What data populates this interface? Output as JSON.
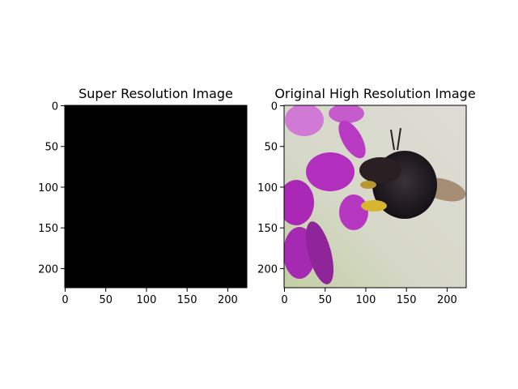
{
  "chart_data": [
    {
      "type": "image",
      "title": "Super Resolution Image",
      "xlim": [
        -0.5,
        223.5
      ],
      "ylim": [
        223.5,
        -0.5
      ],
      "xticks": [
        0,
        50,
        100,
        150,
        200
      ],
      "yticks": [
        0,
        50,
        100,
        150,
        200
      ]
    },
    {
      "type": "image",
      "title": "Original High Resolution Image",
      "xlim": [
        -0.5,
        223.5
      ],
      "ylim": [
        223.5,
        -0.5
      ],
      "xticks": [
        0,
        50,
        100,
        150,
        200
      ],
      "yticks": [
        0,
        50,
        100,
        150,
        200
      ]
    }
  ]
}
